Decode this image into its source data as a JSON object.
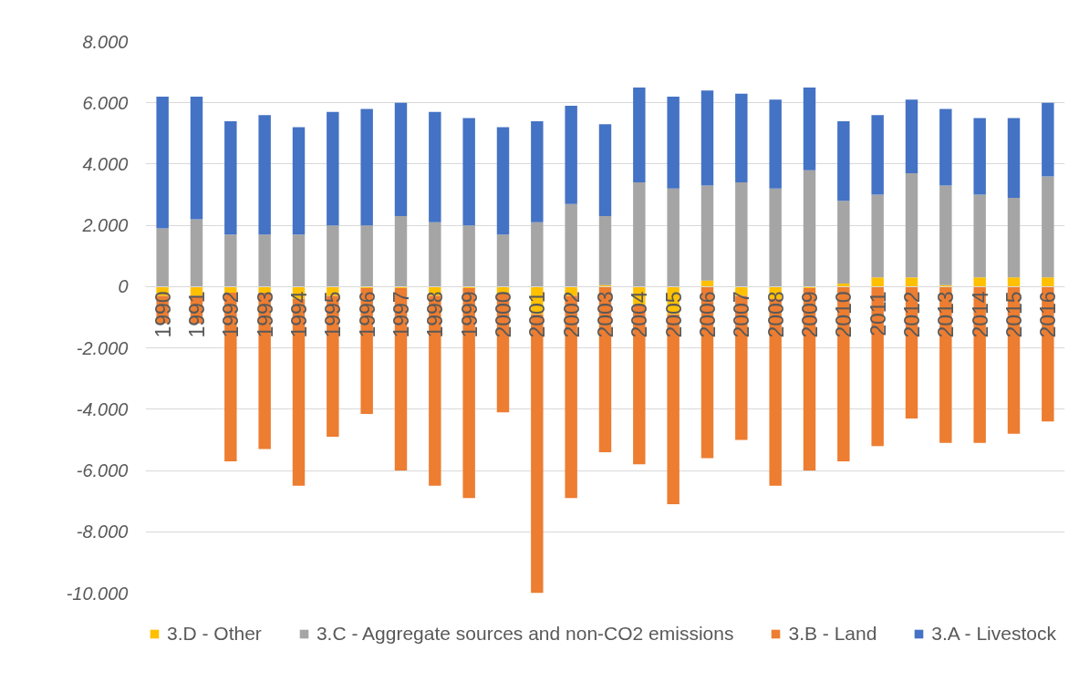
{
  "chart_data": {
    "type": "bar",
    "stacked": true,
    "categories": [
      "1990",
      "1991",
      "1992",
      "1993",
      "1994",
      "1995",
      "1996",
      "1997",
      "1998",
      "1999",
      "2000",
      "2001",
      "2002",
      "2003",
      "2004",
      "2005",
      "2006",
      "2007",
      "2008",
      "2009",
      "2010",
      "2011",
      "2012",
      "2013",
      "2014",
      "2015",
      "2016"
    ],
    "series": [
      {
        "name": "3.D - Other",
        "color": "#ffc000",
        "values": [
          -300,
          -300,
          -200,
          -200,
          -400,
          -300,
          -50,
          -50,
          -300,
          -50,
          -200,
          -900,
          -300,
          50,
          -600,
          -900,
          200,
          -300,
          -400,
          -50,
          100,
          300,
          300,
          50,
          300,
          300,
          300
        ]
      },
      {
        "name": "3.C - Aggregate sources and non-CO2 emissions",
        "color": "#a5a5a5",
        "values": [
          1900,
          2200,
          1700,
          1700,
          1700,
          2000,
          2000,
          2300,
          2100,
          2000,
          1700,
          2100,
          2700,
          2250,
          3400,
          3200,
          3100,
          3400,
          3200,
          3800,
          2700,
          2700,
          3400,
          3250,
          2700,
          2600,
          3300
        ]
      },
      {
        "name": "3.B - Land",
        "color": "#ed7d31",
        "values": [
          -900,
          -900,
          -5500,
          -5100,
          -6100,
          -4600,
          -4100,
          -5950,
          -6200,
          -6850,
          -3900,
          -9100,
          -6600,
          -5400,
          -5200,
          -6200,
          -5600,
          -4700,
          -6100,
          -5950,
          -5700,
          -5200,
          -4300,
          -5100,
          -5100,
          -4800,
          -4400
        ]
      },
      {
        "name": "3.A - Livestock",
        "color": "#4472c4",
        "values": [
          4300,
          4000,
          3700,
          3900,
          3500,
          3700,
          3800,
          3700,
          3600,
          3500,
          3500,
          3300,
          3200,
          3000,
          3100,
          3000,
          3100,
          2900,
          2900,
          2700,
          2600,
          2600,
          2400,
          2500,
          2500,
          2600,
          2400
        ]
      }
    ],
    "ylim": [
      -10000,
      8000
    ],
    "yticks": [
      {
        "value": -10000,
        "label": "-10.000"
      },
      {
        "value": -8000,
        "label": "-8.000"
      },
      {
        "value": -6000,
        "label": "-6.000"
      },
      {
        "value": -4000,
        "label": "-4.000"
      },
      {
        "value": -2000,
        "label": "-2.000"
      },
      0,
      {
        "value": 2000,
        "label": "2.000"
      },
      {
        "value": 4000,
        "label": "4.000"
      },
      {
        "value": 6000,
        "label": "6.000"
      },
      {
        "value": 8000,
        "label": "8.000"
      }
    ],
    "grid": "y",
    "legend": "bottom"
  }
}
